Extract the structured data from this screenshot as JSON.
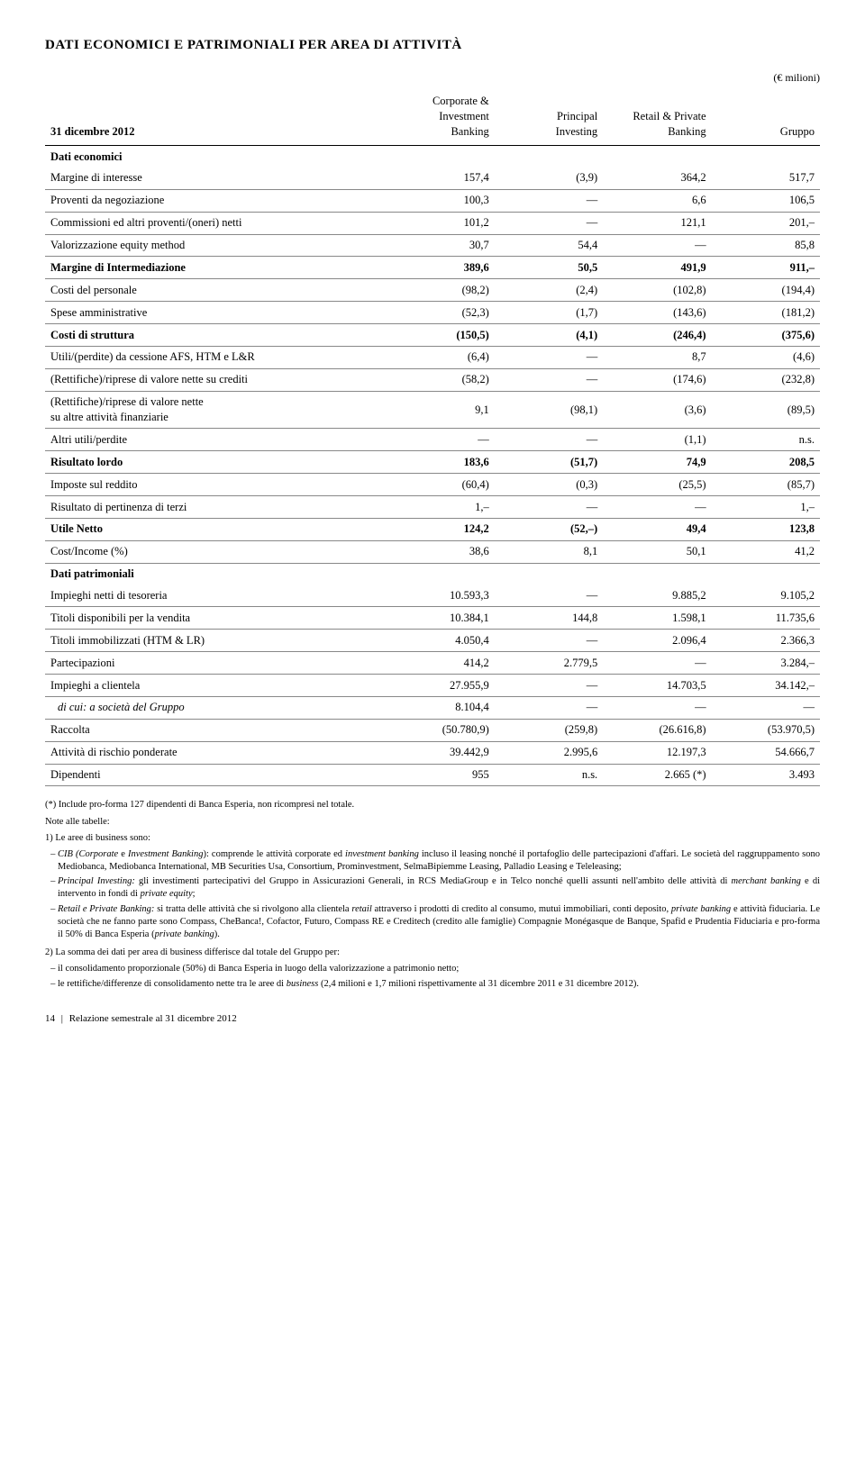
{
  "title": "DATI ECONOMICI E PATRIMONIALI PER AREA DI ATTIVITÀ",
  "unit_label": "(€ milioni)",
  "columns": {
    "date": "31 dicembre 2012",
    "c1_a": "Corporate &",
    "c1_b": "Investment",
    "c1_c": "Banking",
    "c2_a": "Principal",
    "c2_b": "Investing",
    "c3_a": "Retail & Private",
    "c3_b": "Banking",
    "c4": "Gruppo"
  },
  "section1": "Dati economici",
  "rows1": [
    {
      "l": "Margine di interesse",
      "v": [
        "157,4",
        "(3,9)",
        "364,2",
        "517,7"
      ]
    },
    {
      "l": "Proventi da negoziazione",
      "v": [
        "100,3",
        "—",
        "6,6",
        "106,5"
      ]
    },
    {
      "l": "Commissioni ed altri proventi/(oneri) netti",
      "v": [
        "101,2",
        "—",
        "121,1",
        "201,–"
      ]
    },
    {
      "l": "Valorizzazione equity method",
      "v": [
        "30,7",
        "54,4",
        "—",
        "85,8"
      ]
    },
    {
      "l": "Margine di Intermediazione",
      "v": [
        "389,6",
        "50,5",
        "491,9",
        "911,–"
      ],
      "bold": true
    },
    {
      "l": "Costi del personale",
      "v": [
        "(98,2)",
        "(2,4)",
        "(102,8)",
        "(194,4)"
      ]
    },
    {
      "l": "Spese amministrative",
      "v": [
        "(52,3)",
        "(1,7)",
        "(143,6)",
        "(181,2)"
      ]
    },
    {
      "l": "Costi di struttura",
      "v": [
        "(150,5)",
        "(4,1)",
        "(246,4)",
        "(375,6)"
      ],
      "bold": true
    },
    {
      "l": "Utili/(perdite) da cessione AFS, HTM e L&R",
      "v": [
        "(6,4)",
        "—",
        "8,7",
        "(4,6)"
      ]
    },
    {
      "l": "(Rettifiche)/riprese di valore nette su crediti",
      "v": [
        "(58,2)",
        "—",
        "(174,6)",
        "(232,8)"
      ]
    },
    {
      "l": "(Rettifiche)/riprese di valore nette\nsu altre attività finanziarie",
      "v": [
        "9,1",
        "(98,1)",
        "(3,6)",
        "(89,5)"
      ]
    },
    {
      "l": "Altri utili/perdite",
      "v": [
        "—",
        "—",
        "(1,1)",
        "n.s."
      ]
    },
    {
      "l": "Risultato lordo",
      "v": [
        "183,6",
        "(51,7)",
        "74,9",
        "208,5"
      ],
      "bold": true
    },
    {
      "l": "Imposte sul reddito",
      "v": [
        "(60,4)",
        "(0,3)",
        "(25,5)",
        "(85,7)"
      ]
    },
    {
      "l": "Risultato di pertinenza di terzi",
      "v": [
        "1,–",
        "—",
        "—",
        "1,–"
      ]
    },
    {
      "l": "Utile Netto",
      "v": [
        "124,2",
        "(52,–)",
        "49,4",
        "123,8"
      ],
      "bold": true
    },
    {
      "l": "Cost/Income (%)",
      "v": [
        "38,6",
        "8,1",
        "50,1",
        "41,2"
      ]
    }
  ],
  "section2": "Dati patrimoniali",
  "rows2": [
    {
      "l": "Impieghi netti di tesoreria",
      "v": [
        "10.593,3",
        "—",
        "9.885,2",
        "9.105,2"
      ]
    },
    {
      "l": "Titoli disponibili per la vendita",
      "v": [
        "10.384,1",
        "144,8",
        "1.598,1",
        "11.735,6"
      ]
    },
    {
      "l": "Titoli immobilizzati (HTM & LR)",
      "v": [
        "4.050,4",
        "—",
        "2.096,4",
        "2.366,3"
      ]
    },
    {
      "l": "Partecipazioni",
      "v": [
        "414,2",
        "2.779,5",
        "—",
        "3.284,–"
      ]
    },
    {
      "l": "Impieghi a clientela",
      "v": [
        "27.955,9",
        "—",
        "14.703,5",
        "34.142,–"
      ]
    },
    {
      "l": "di cui: a società del Gruppo",
      "v": [
        "8.104,4",
        "—",
        "—",
        "—"
      ],
      "italic": true
    },
    {
      "l": "Raccolta",
      "v": [
        "(50.780,9)",
        "(259,8)",
        "(26.616,8)",
        "(53.970,5)"
      ]
    },
    {
      "l": "Attività di rischio ponderate",
      "v": [
        "39.442,9",
        "2.995,6",
        "12.197,3",
        "54.666,7"
      ]
    },
    {
      "l": "Dipendenti",
      "v": [
        "955",
        "n.s.",
        "2.665 (*)",
        "3.493"
      ]
    }
  ],
  "footnotes": {
    "star": "(*) Include pro-forma 127 dipendenti di Banca Esperia, non ricompresi nel totale.",
    "note_intro": "Note alle tabelle:",
    "n1_lead": "1) Le aree di business sono:",
    "n1_items": [
      "CIB (Corporate e Investment Banking): comprende le attività corporate ed investment banking incluso il leasing nonché il portafoglio delle partecipazioni d'affari. Le società del raggruppamento sono Mediobanca, Mediobanca International, MB Securities Usa, Consortium, Prominvestment, SelmaBipiemme Leasing, Palladio Leasing e Teleleasing;",
      "Principal Investing: gli investimenti partecipativi del Gruppo in Assicurazioni Generali, in RCS MediaGroup e in Telco nonché quelli assunti nell'ambito delle attività di merchant banking e di intervento in fondi di private equity;",
      "Retail e Private Banking: si tratta delle attività che si rivolgono alla clientela retail attraverso i prodotti di credito al consumo, mutui immobiliari, conti deposito, private banking e attività fiduciaria. Le società che ne fanno parte sono Compass, CheBanca!, Cofactor, Futuro, Compass RE e Creditech (credito alle famiglie) Compagnie Monégasque de Banque, Spafid e Prudentia Fiduciaria e pro-forma il 50% di Banca Esperia (private banking)."
    ],
    "n2_lead": "2) La somma dei dati per area di business differisce dal totale del Gruppo per:",
    "n2_items": [
      "il consolidamento proporzionale (50%) di Banca Esperia in luogo della valorizzazione a patrimonio netto;",
      "le rettifiche/differenze di consolidamento nette tra le aree di business (2,4 milioni e 1,7 milioni rispettivamente al 31 dicembre 2011 e 31 dicembre 2012)."
    ]
  },
  "pagefoot": {
    "num": "14",
    "text": "Relazione semestrale al 31 dicembre 2012"
  }
}
